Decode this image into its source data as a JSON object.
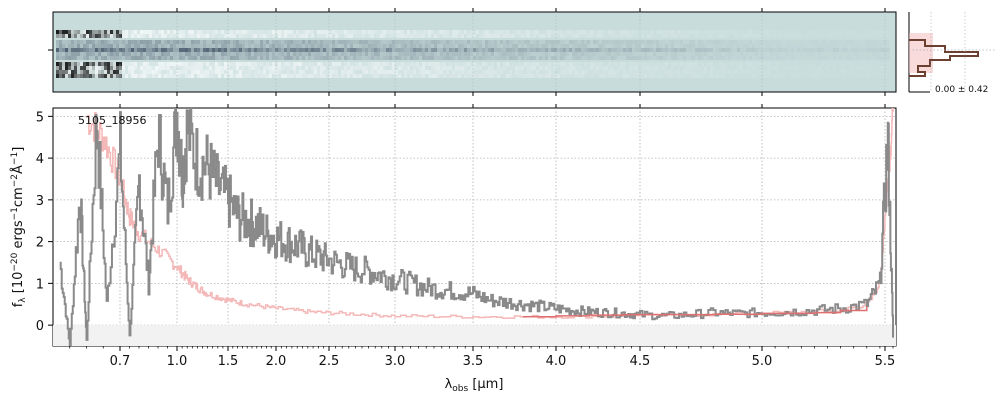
{
  "chart_data": [
    {
      "type": "heatmap",
      "panel": "2d-spectrum",
      "description_visible": "2D spectrum strip, dark trace along center",
      "background_color": "#c8dcdc",
      "trace_color": "#1a2a44"
    },
    {
      "type": "line",
      "panel": "1d-spectrum",
      "object_id": "5105_18956",
      "xlabel": "λ_obs [μm]",
      "ylabel": "f_λ [10^-20 erg s^-1 cm^-2 Å^-1]",
      "xlim": [
        0.5,
        5.5
      ],
      "ylim": [
        -0.5,
        5.2
      ],
      "x_tick_labels": [
        "0.7",
        "1.0",
        "1.5",
        "2.0",
        "2.5",
        "3.0",
        "3.5",
        "4.0",
        "4.5",
        "5.0",
        "5.5"
      ],
      "y_ticks": [
        0,
        1,
        2,
        3,
        4,
        5
      ],
      "grid": true,
      "series": [
        {
          "role": "flux",
          "color": "#8a8a8a",
          "x": [
            0.52,
            0.55,
            0.58,
            0.6,
            0.63,
            0.66,
            0.7,
            0.75,
            0.8,
            0.85,
            0.9,
            0.95,
            1.0,
            1.05,
            1.1,
            1.2,
            1.3,
            1.4,
            1.5,
            1.6,
            1.7,
            1.8,
            1.9,
            2.0,
            2.1,
            2.2,
            2.3,
            2.4,
            2.5,
            2.6,
            2.7,
            2.8,
            2.9,
            3.0,
            3.1,
            3.2,
            3.3,
            3.4,
            3.5,
            3.6,
            3.7,
            3.8,
            3.9,
            4.0,
            4.1,
            4.2,
            4.3,
            4.4,
            4.5,
            4.6,
            4.7,
            4.8,
            4.9,
            5.0,
            5.1,
            5.2,
            5.3,
            5.4,
            5.45,
            5.48,
            5.5
          ],
          "y": [
            1.5,
            -0.5,
            3.2,
            -0.4,
            5.0,
            0.5,
            4.2,
            -0.3,
            3.5,
            1.0,
            4.6,
            2.8,
            5.1,
            3.6,
            4.7,
            3.9,
            3.8,
            3.3,
            3.0,
            2.6,
            2.5,
            2.4,
            2.2,
            2.1,
            2.0,
            1.9,
            1.75,
            1.65,
            1.55,
            1.45,
            1.35,
            1.3,
            1.2,
            1.1,
            1.0,
            0.9,
            0.85,
            0.8,
            0.75,
            0.6,
            0.55,
            0.5,
            0.45,
            0.4,
            0.35,
            0.32,
            0.3,
            0.28,
            0.25,
            0.22,
            0.25,
            0.3,
            0.28,
            0.3,
            0.32,
            0.35,
            0.4,
            0.5,
            1.0,
            4.5,
            -0.3
          ]
        },
        {
          "role": "uncertainty",
          "color": "#f4b8b8",
          "x": [
            0.6,
            0.65,
            0.7,
            0.75,
            0.8,
            0.9,
            1.0,
            1.1,
            1.2,
            1.3,
            1.5,
            1.7,
            2.0,
            2.3,
            2.6,
            3.0,
            3.5,
            4.0,
            4.5,
            5.0,
            5.3,
            5.4,
            5.45,
            5.48,
            5.5
          ],
          "y": [
            5.0,
            4.5,
            3.5,
            2.6,
            2.2,
            1.8,
            1.4,
            1.1,
            0.9,
            0.75,
            0.6,
            0.5,
            0.4,
            0.32,
            0.28,
            0.22,
            0.2,
            0.2,
            0.22,
            0.28,
            0.35,
            0.5,
            1.0,
            3.5,
            5.1
          ]
        },
        {
          "role": "model",
          "color": "#e07070",
          "x": [
            3.8,
            4.0,
            4.2,
            4.4,
            4.6,
            4.8,
            5.0,
            5.2,
            5.3,
            5.4
          ],
          "y": [
            0.2,
            0.22,
            0.24,
            0.25,
            0.25,
            0.26,
            0.28,
            0.3,
            0.35,
            0.45
          ]
        }
      ]
    },
    {
      "type": "line",
      "panel": "profile",
      "annotation": "0.00 ± 0.42",
      "color": "#6b4030",
      "band_color": "#f4b8b8"
    }
  ]
}
